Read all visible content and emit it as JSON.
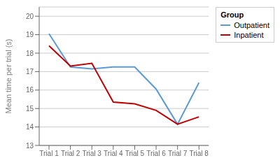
{
  "chart_data": {
    "type": "line",
    "categories": [
      "Trial 1",
      "Trial 2",
      "Trial 3",
      "Trial 4",
      "Trial 5",
      "Trial 6",
      "Trial 7",
      "Trial 8"
    ],
    "series": [
      {
        "name": "Outpatient",
        "color": "#5b9bd5",
        "values": [
          19.05,
          17.25,
          17.15,
          17.25,
          17.25,
          16.05,
          14.15,
          16.4
        ]
      },
      {
        "name": "Inpatient",
        "color": "#c00000",
        "values": [
          18.4,
          17.3,
          17.45,
          15.35,
          15.25,
          14.9,
          14.15,
          14.55
        ]
      }
    ],
    "ylabel": "Mean time per trial (s)",
    "ylim": [
      13,
      20.5
    ],
    "yticks": [
      13,
      14,
      15,
      16,
      17,
      18,
      19,
      20
    ],
    "grid": true,
    "legend": "right",
    "legend_title": "Group"
  }
}
